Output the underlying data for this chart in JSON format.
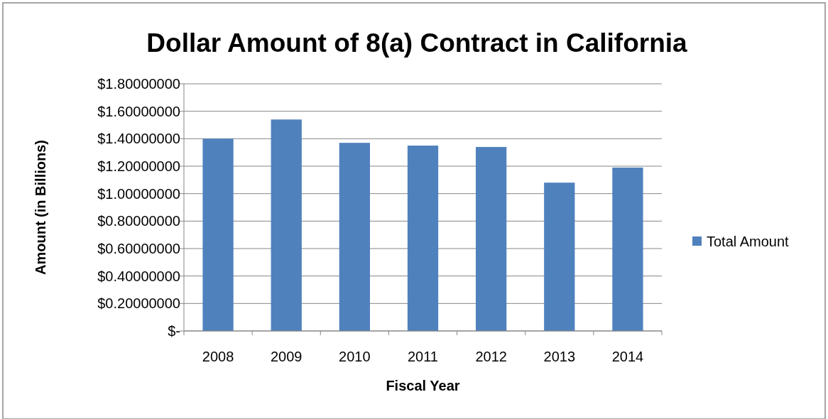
{
  "chart_data": {
    "type": "bar",
    "title": "Dollar Amount  of 8(a) Contract in California",
    "xlabel": "Fiscal Year",
    "ylabel": "Amount (in Billions)",
    "categories": [
      "2008",
      "2009",
      "2010",
      "2011",
      "2012",
      "2013",
      "2014"
    ],
    "series": [
      {
        "name": "Total Amount",
        "color": "#4f81bd",
        "values": [
          1.4,
          1.54,
          1.37,
          1.35,
          1.34,
          1.08,
          1.19
        ]
      }
    ],
    "ylim": [
      0,
      1.8
    ],
    "yticks": [
      {
        "value": 0,
        "label": "$-"
      },
      {
        "value": 0.2,
        "label": "$0.20000000"
      },
      {
        "value": 0.4,
        "label": "$0.40000000"
      },
      {
        "value": 0.6,
        "label": "$0.60000000"
      },
      {
        "value": 0.8,
        "label": "$0.80000000"
      },
      {
        "value": 1.0,
        "label": "$1.00000000"
      },
      {
        "value": 1.2,
        "label": "$1.20000000"
      },
      {
        "value": 1.4,
        "label": "$1.40000000"
      },
      {
        "value": 1.6,
        "label": "$1.60000000"
      },
      {
        "value": 1.8,
        "label": "$1.80000000"
      }
    ],
    "grid": "y",
    "legend": "right"
  }
}
